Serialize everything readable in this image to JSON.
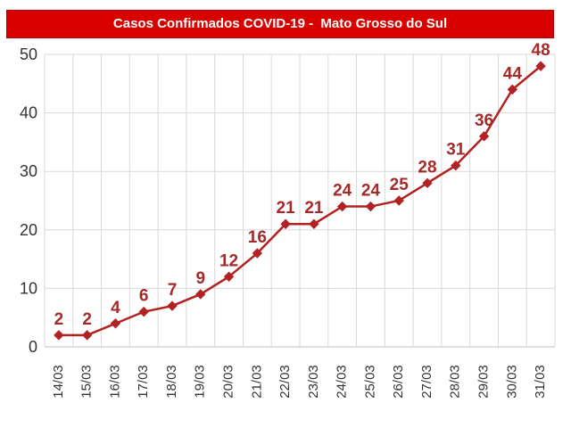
{
  "title": "Casos Confirmados COVID-19 -  Mato Grosso do Sul",
  "colors": {
    "title_bg": "#d90000",
    "title_text": "#ffffff",
    "series": "#b22222",
    "label": "#a52a2a",
    "grid": "#d9d9d9"
  },
  "chart_data": {
    "type": "line",
    "title": "Casos Confirmados COVID-19 -  Mato Grosso do Sul",
    "xlabel": "",
    "ylabel": "",
    "categories": [
      "14/03",
      "15/03",
      "16/03",
      "17/03",
      "18/03",
      "19/03",
      "20/03",
      "21/03",
      "22/03",
      "23/03",
      "24/03",
      "25/03",
      "26/03",
      "27/03",
      "28/03",
      "29/03",
      "30/03",
      "31/03"
    ],
    "values": [
      2,
      2,
      4,
      6,
      7,
      9,
      12,
      16,
      21,
      21,
      24,
      24,
      25,
      28,
      31,
      36,
      44,
      48
    ],
    "ylim": [
      0,
      50
    ],
    "yticks": [
      0,
      10,
      20,
      30,
      40,
      50
    ],
    "grid": true,
    "marker": "diamond",
    "data_labels": true,
    "legend": "none"
  }
}
